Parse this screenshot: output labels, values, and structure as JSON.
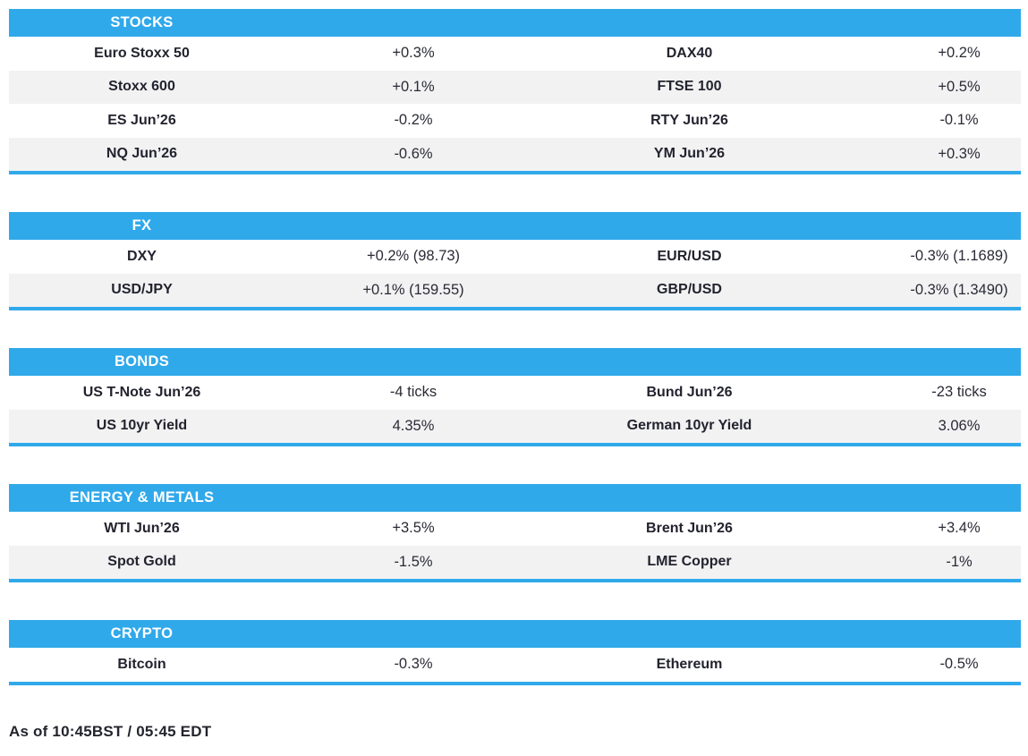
{
  "colors": {
    "accent_blue": "#30A9EA",
    "row_stripe": "#F2F2F3",
    "text_dark": "#22232E",
    "header_text": "#FFFFFF"
  },
  "meta": {
    "as_of": "As of 10:45BST / 05:45 EDT"
  },
  "sections": [
    {
      "title": "STOCKS",
      "rows": [
        [
          "Euro Stoxx 50",
          "+0.3%",
          "DAX40",
          "+0.2%"
        ],
        [
          "Stoxx 600",
          "+0.1%",
          "FTSE 100",
          "+0.5%"
        ],
        [
          "ES Jun’26",
          "-0.2%",
          "RTY Jun’26",
          "-0.1%"
        ],
        [
          "NQ Jun’26",
          "-0.6%",
          "YM Jun’26",
          "+0.3%"
        ]
      ]
    },
    {
      "title": "FX",
      "rows": [
        [
          "DXY",
          "+0.2% (98.73)",
          "EUR/USD",
          "-0.3% (1.1689)"
        ],
        [
          "USD/JPY",
          "+0.1% (159.55)",
          "GBP/USD",
          "-0.3% (1.3490)"
        ]
      ]
    },
    {
      "title": "BONDS",
      "rows": [
        [
          "US T-Note Jun’26",
          "-4 ticks",
          "Bund Jun’26",
          "-23 ticks"
        ],
        [
          "US 10yr Yield",
          "4.35%",
          "German 10yr Yield",
          "3.06%"
        ]
      ]
    },
    {
      "title": "ENERGY & METALS",
      "rows": [
        [
          "WTI Jun’26",
          "+3.5%",
          "Brent Jun’26",
          "+3.4%"
        ],
        [
          "Spot Gold",
          "-1.5%",
          "LME Copper",
          "-1%"
        ]
      ]
    },
    {
      "title": "CRYPTO",
      "rows": [
        [
          "Bitcoin",
          "-0.3%",
          "Ethereum",
          "-0.5%"
        ]
      ]
    }
  ]
}
